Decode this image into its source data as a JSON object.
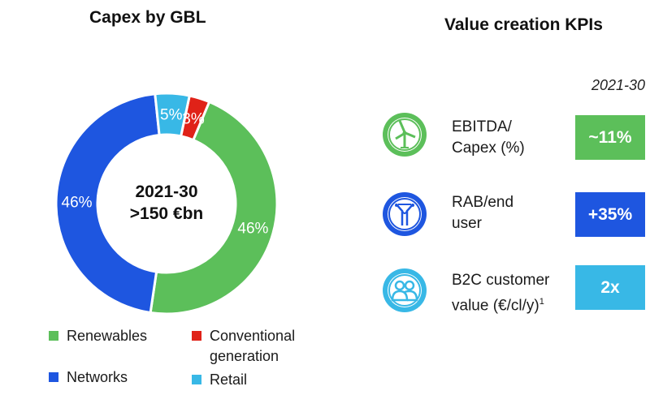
{
  "left_title": "Capex by GBL",
  "right_title": "Value creation KPIs",
  "period_label": "2021-30",
  "colors": {
    "renewables": "#5cbf5a",
    "networks": "#1e56e0",
    "retail": "#38b8e6",
    "conventional": "#e02218"
  },
  "chart_data": {
    "type": "pie",
    "title": "Capex by GBL",
    "center_label_line1": "2021-30",
    "center_label_line2": ">150 €bn",
    "categories": [
      "Renewables",
      "Networks",
      "Retail",
      "Conventional generation"
    ],
    "values": [
      46,
      46,
      5,
      3
    ],
    "value_labels": [
      "46%",
      "46%",
      "5%",
      "3%"
    ],
    "legend": [
      "Renewables",
      "Conventional generation",
      "Networks",
      "Retail"
    ]
  },
  "legend": {
    "renewables": "Renewables",
    "conventional_line1": "Conventional",
    "conventional_line2": "generation",
    "networks": "Networks",
    "retail": "Retail"
  },
  "kpis": [
    {
      "icon": "wind-turbine-icon",
      "label_line1": "EBITDA/",
      "label_line2": "Capex (%)",
      "value": "~11%",
      "color": "#5cbf5a"
    },
    {
      "icon": "power-pylon-icon",
      "label_line1": "RAB/end",
      "label_line2": "user",
      "value": "+35%",
      "color": "#1e56e0"
    },
    {
      "icon": "customers-icon",
      "label_line1": "B2C customer",
      "label_line2": "value (€/cl/y)",
      "label_sup": "1",
      "value": "2x",
      "color": "#38b8e6"
    }
  ]
}
